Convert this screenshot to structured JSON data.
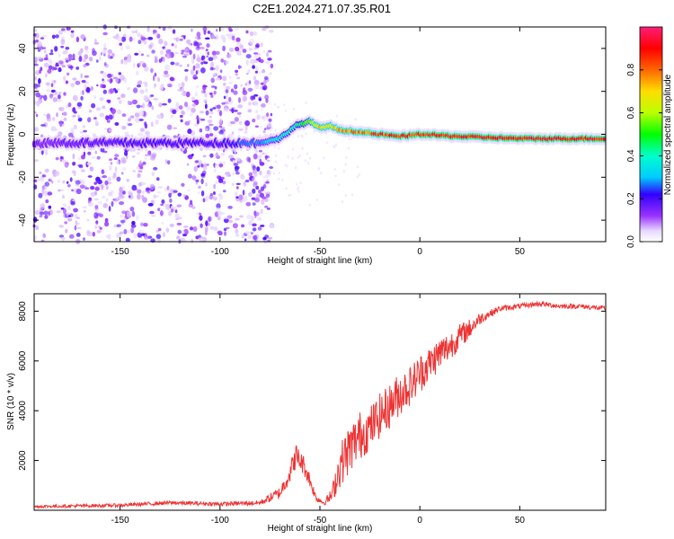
{
  "title": "C2E1.2024.271.07.35.R01",
  "colors": {
    "snr_line": "#ee3333",
    "axis": "#000000",
    "background": "#ffffff"
  },
  "chart_data": [
    {
      "type": "heatmap",
      "name": "spectrogram",
      "xlabel": "Height of straight line (km)",
      "ylabel": "Frequency (Hz)",
      "xlim": [
        -193,
        93
      ],
      "ylim": [
        -50,
        50
      ],
      "xticks": [
        -150,
        -100,
        -50,
        0,
        50
      ],
      "yticks": [
        -40,
        -20,
        0,
        20,
        40
      ],
      "colorbar": {
        "label": "Normalized spectral amplitude",
        "range": [
          0.0,
          1.0
        ],
        "ticks": [
          "0.0",
          "0.2",
          "0.4",
          "0.6",
          "0.8"
        ],
        "tick_values": [
          0.0,
          0.2,
          0.4,
          0.6,
          0.8
        ]
      },
      "ridge": {
        "description": "Frequency of peak spectral power versus height",
        "x": [
          -193,
          -150,
          -100,
          -80,
          -70,
          -62,
          -55,
          -50,
          -45,
          -40,
          -30,
          -20,
          -10,
          0,
          20,
          50,
          93
        ],
        "y": [
          -4,
          -4,
          -4,
          -4,
          -2,
          4,
          6,
          3,
          4,
          2,
          1,
          0,
          -1,
          0,
          -1,
          -2,
          -2
        ],
        "amplitude": [
          0.15,
          0.22,
          0.22,
          0.3,
          0.4,
          0.45,
          0.6,
          0.75,
          0.7,
          0.8,
          0.85,
          0.9,
          0.92,
          0.95,
          0.95,
          0.98,
          0.95
        ]
      },
      "noise_region": {
        "x_start": -193,
        "x_end": -80,
        "level": "high"
      }
    },
    {
      "type": "line",
      "name": "snr",
      "xlabel": "Height of straight line (km)",
      "ylabel": "SNR (10 * v/v)",
      "xlim": [
        -193,
        93
      ],
      "ylim": [
        0,
        8700
      ],
      "xticks": [
        -150,
        -100,
        -50,
        0,
        50
      ],
      "yticks": [
        2000,
        4000,
        6000,
        8000
      ],
      "series": [
        {
          "name": "SNR",
          "x": [
            -193,
            -150,
            -125,
            -100,
            -80,
            -70,
            -65,
            -62,
            -58,
            -55,
            -52,
            -48,
            -44,
            -40,
            -35,
            -30,
            -25,
            -20,
            -15,
            -10,
            -5,
            0,
            5,
            10,
            15,
            20,
            25,
            30,
            35,
            40,
            50,
            60,
            70,
            80,
            93
          ],
          "y": [
            150,
            200,
            300,
            250,
            300,
            700,
            1500,
            2200,
            1800,
            1200,
            500,
            300,
            600,
            1800,
            2500,
            3000,
            3300,
            3800,
            4200,
            4700,
            5000,
            5500,
            5900,
            6300,
            6600,
            7000,
            7300,
            7700,
            7900,
            8100,
            8200,
            8300,
            8200,
            8200,
            8100
          ],
          "noise_amplitude": [
            60,
            70,
            80,
            80,
            100,
            250,
            400,
            500,
            400,
            300,
            150,
            100,
            300,
            900,
            1000,
            1000,
            900,
            900,
            900,
            900,
            800,
            800,
            700,
            700,
            600,
            500,
            400,
            250,
            150,
            120,
            100,
            100,
            100,
            100,
            100
          ]
        }
      ]
    }
  ]
}
